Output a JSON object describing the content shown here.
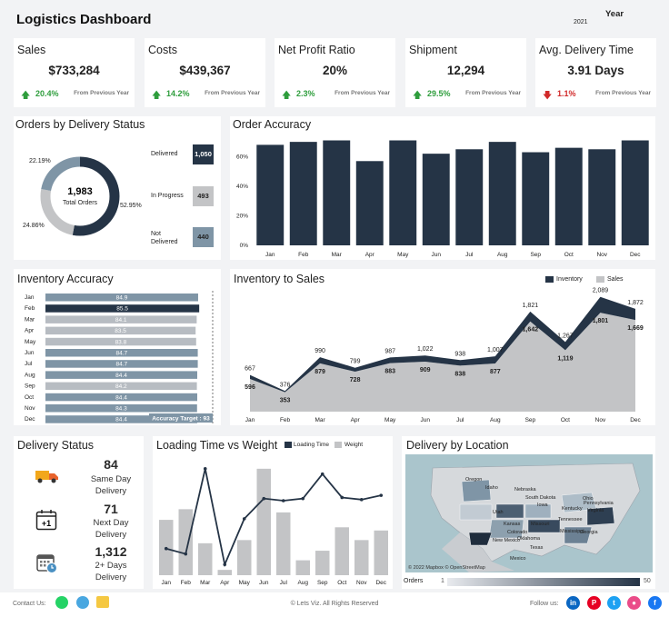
{
  "header": {
    "title": "Logistics Dashboard",
    "year_label": "Year",
    "year_value": "2021"
  },
  "kpis": [
    {
      "title": "Sales",
      "value": "$733,284",
      "direction": "up",
      "pct": "20.4%",
      "note": "From Previous Year"
    },
    {
      "title": "Costs",
      "value": "$439,367",
      "direction": "up",
      "pct": "14.2%",
      "note": "From Previous Year"
    },
    {
      "title": "Net Profit Ratio",
      "value": "20%",
      "direction": "up",
      "pct": "2.3%",
      "note": "From Previous Year"
    },
    {
      "title": "Shipment",
      "value": "12,294",
      "direction": "up",
      "pct": "29.5%",
      "note": "From Previous Year"
    },
    {
      "title": "Avg. Delivery Time",
      "value": "3.91 Days",
      "direction": "down",
      "pct": "1.1%",
      "note": "From Previous Year"
    }
  ],
  "orders_status": {
    "title": "Orders by Delivery Status",
    "total_value": "1,983",
    "total_label": "Total Orders",
    "pct_labels": {
      "delivered": "52.95%",
      "in_progress": "24.86%",
      "not_delivered": "22.19%"
    },
    "items": [
      {
        "label": "Delivered",
        "value": "1,050"
      },
      {
        "label": "In Progress",
        "value": "493"
      },
      {
        "label": "Not Delivered",
        "value": "440"
      }
    ]
  },
  "order_accuracy": {
    "title": "Order Accuracy",
    "chart_data": {
      "type": "bar",
      "categories": [
        "Jan",
        "Feb",
        "Mar",
        "Apr",
        "May",
        "Jun",
        "Jul",
        "Aug",
        "Sep",
        "Oct",
        "Nov",
        "Dec"
      ],
      "values": [
        68,
        70,
        71,
        57,
        71,
        62,
        65,
        70,
        63,
        66,
        65,
        71
      ],
      "ylim": [
        0,
        75
      ],
      "yticks": [
        "0%",
        "20%",
        "40%",
        "60%"
      ],
      "ytick_values": [
        0,
        20,
        40,
        60
      ]
    }
  },
  "inventory_accuracy": {
    "title": "Inventory Accuracy",
    "target_label": "Accuracy Target : 93",
    "chart_data": {
      "type": "bar",
      "orientation": "horizontal",
      "categories": [
        "Jan",
        "Feb",
        "Mar",
        "Apr",
        "May",
        "Jun",
        "Jul",
        "Aug",
        "Sep",
        "Oct",
        "Nov",
        "Dec"
      ],
      "values": [
        84.9,
        85.5,
        84.1,
        83.5,
        83.8,
        84.7,
        84.7,
        84.4,
        84.2,
        84.4,
        84.3,
        84.4
      ],
      "labels": [
        "84.9",
        "85.5",
        "84.1",
        "83.5",
        "83.8",
        "84.7",
        "84.7",
        "84.4",
        "84.2",
        "84.4",
        "84.3",
        "84.4"
      ],
      "target": 93
    }
  },
  "inventory_sales": {
    "title": "Inventory to Sales",
    "legend": [
      "Inventory",
      "Sales"
    ],
    "chart_data": {
      "type": "area",
      "categories": [
        "Jan",
        "Feb",
        "Mar",
        "Apr",
        "May",
        "Jun",
        "Jul",
        "Aug",
        "Sep",
        "Oct",
        "Nov",
        "Dec"
      ],
      "series": [
        {
          "name": "Inventory",
          "values": [
            667,
            376,
            990,
            799,
            987,
            1022,
            938,
            1007,
            1821,
            1267,
            2089,
            1872
          ],
          "labels": [
            "667",
            "376",
            "990",
            "799",
            "987",
            "1,022",
            "938",
            "1,007",
            "1,821",
            "1,267",
            "2,089",
            "1,872"
          ]
        },
        {
          "name": "Sales",
          "values": [
            596,
            353,
            879,
            728,
            883,
            909,
            838,
            877,
            1642,
            1119,
            1801,
            1669
          ],
          "labels": [
            "596",
            "353",
            "879",
            "728",
            "883",
            "909",
            "838",
            "877",
            "1,642",
            "1,119",
            "1,801",
            "1,669"
          ]
        }
      ],
      "ylim": [
        0,
        2200
      ]
    }
  },
  "delivery_status": {
    "title": "Delivery Status",
    "items": [
      {
        "icon": "truck-icon",
        "value": "84",
        "label1": "Same Day",
        "label2": "Delivery"
      },
      {
        "icon": "calendar-plus-icon",
        "value": "71",
        "label1": "Next Day",
        "label2": "Delivery"
      },
      {
        "icon": "calendar-clock-icon",
        "value": "1,312",
        "label1": "2+ Days",
        "label2": "Delivery"
      }
    ]
  },
  "loading_weight": {
    "title": "Loading Time vs Weight",
    "legend": [
      "Loading Time",
      "Weight"
    ],
    "chart_data": {
      "type": "bar",
      "categories": [
        "Jan",
        "Feb",
        "Mar",
        "Apr",
        "May",
        "Jun",
        "Jul",
        "Aug",
        "Sep",
        "Oct",
        "Nov",
        "Dec"
      ],
      "series": [
        {
          "name": "Weight",
          "values": [
            52,
            62,
            30,
            5,
            33,
            100,
            59,
            14,
            23,
            45,
            33,
            42
          ]
        },
        {
          "name": "Loading Time",
          "values": [
            25,
            20,
            100,
            10,
            53,
            72,
            70,
            72,
            95,
            73,
            71,
            75
          ]
        }
      ],
      "ylim": [
        0,
        105
      ]
    }
  },
  "delivery_location": {
    "title": "Delivery by Location",
    "map_credit": "© 2022 Mapbox © OpenStreetMap",
    "states": [
      "Oregon",
      "Idaho",
      "Nebraska",
      "South Dakota",
      "Iowa",
      "Utah",
      "Kansas",
      "Missouri",
      "Colorado",
      "Oklahoma",
      "Kentucky",
      "Tennessee",
      "New Mexico",
      "Mississippi",
      "Texas",
      "Georgia",
      "Ohio",
      "Virginia",
      "Pennsylvania",
      "Mexico"
    ],
    "legend_label": "Orders",
    "legend_min": "1",
    "legend_max": "50"
  },
  "footer": {
    "contact_label": "Contact Us:",
    "copyright": "© Lets Viz. All Rights Reserved",
    "follow_label": "Follow us:",
    "social": [
      {
        "icon": "linkedin-icon",
        "glyph": "in",
        "color": "#0a66c2"
      },
      {
        "icon": "pinterest-icon",
        "glyph": "P",
        "color": "#e60023"
      },
      {
        "icon": "twitter-icon",
        "glyph": "t",
        "color": "#1da1f2"
      },
      {
        "icon": "dribbble-icon",
        "glyph": "●",
        "color": "#ea4c89"
      },
      {
        "icon": "facebook-icon",
        "glyph": "f",
        "color": "#1877f2"
      }
    ]
  },
  "colors": {
    "navy": "#253446",
    "gray": "#c3c4c6",
    "blue_gray": "#7f95a6",
    "light_gray": "#b7bcc2"
  }
}
